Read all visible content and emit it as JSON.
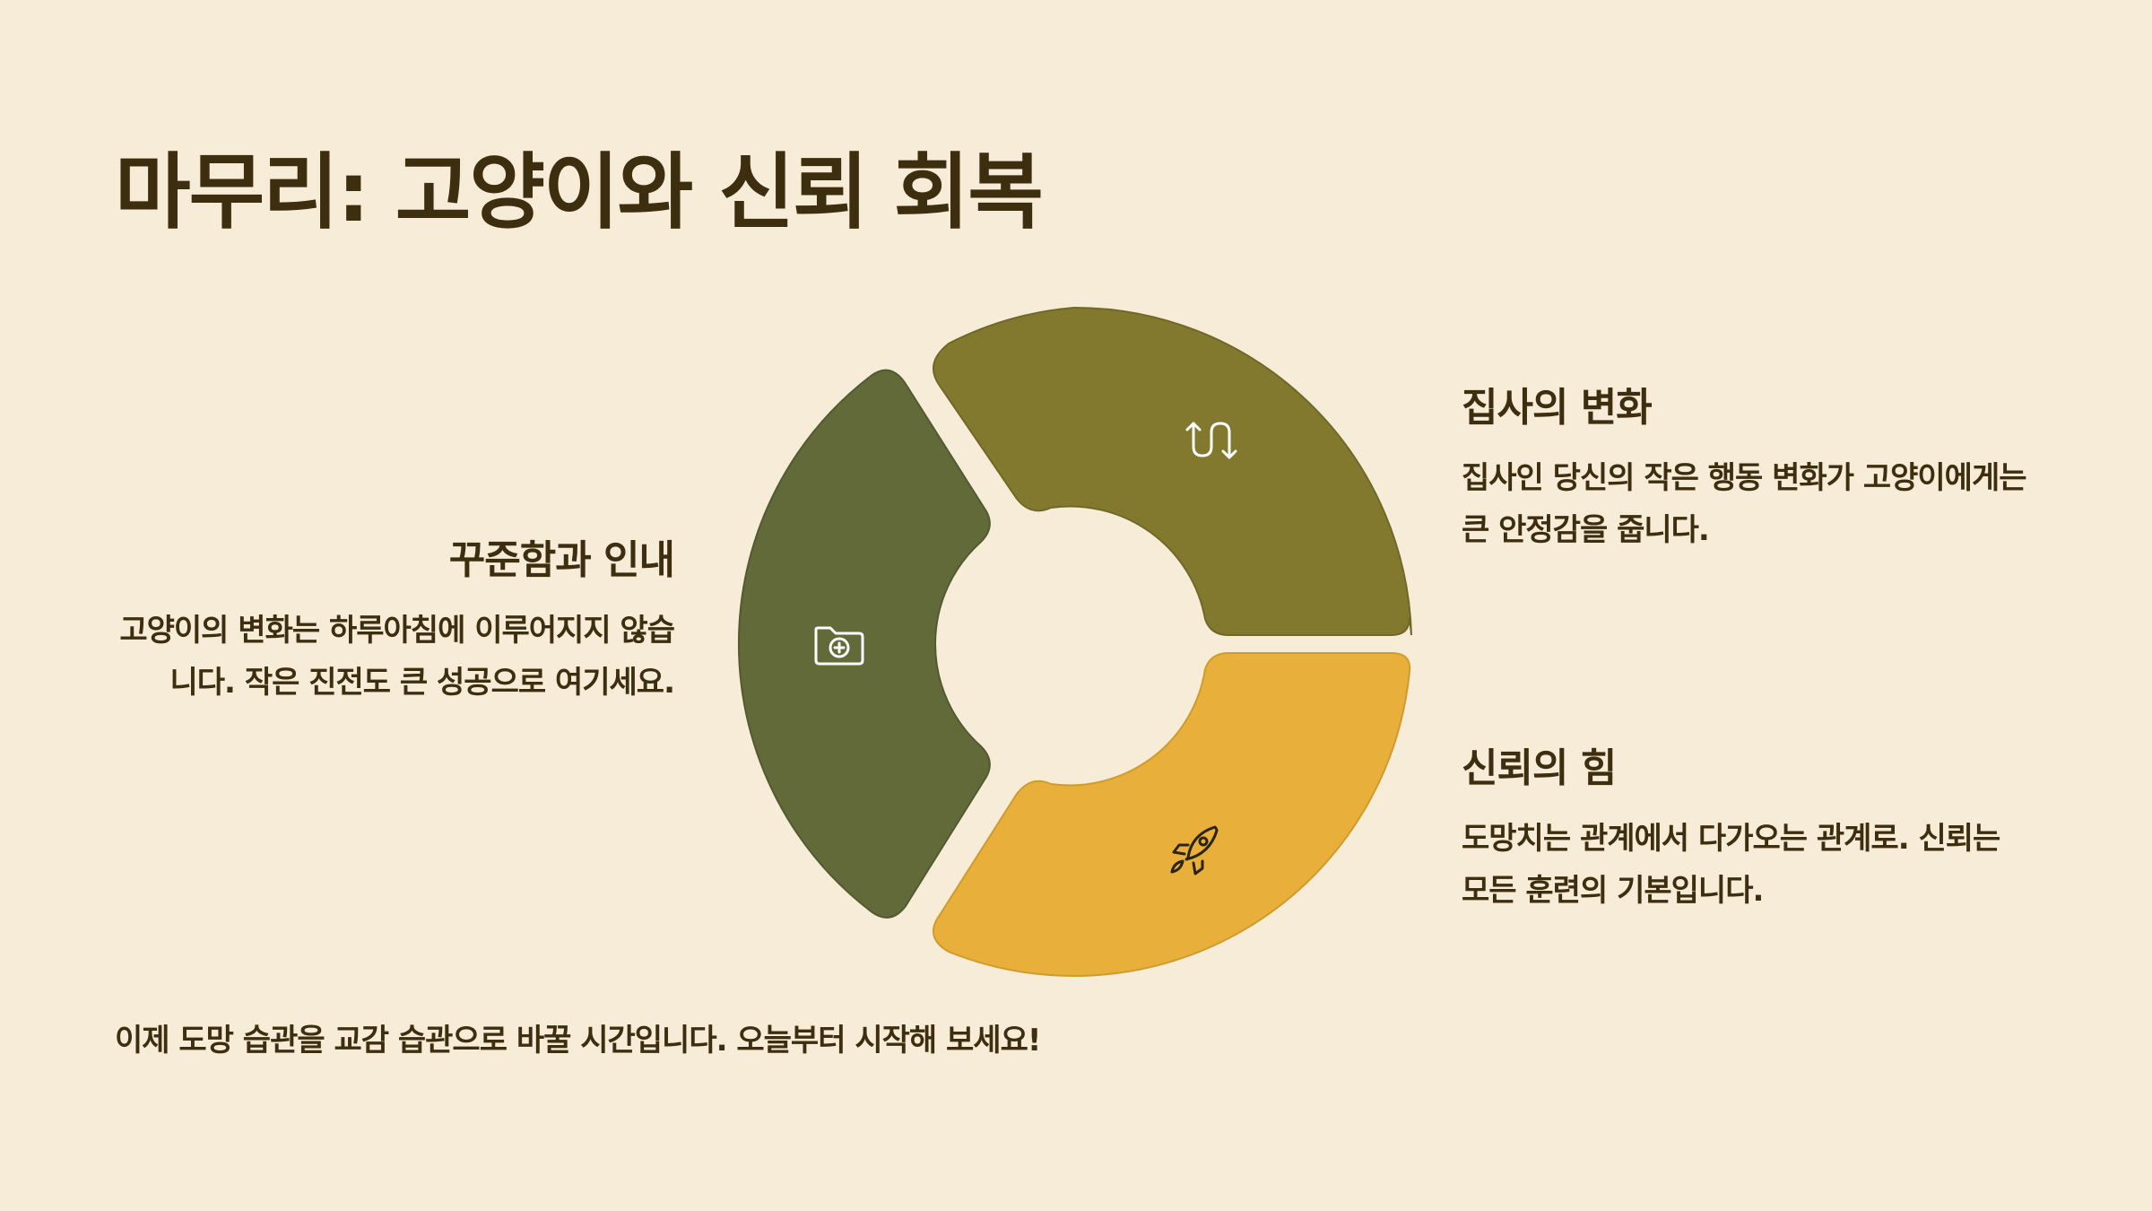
{
  "title": "마무리: 고양이와 신뢰 회복",
  "diagram": {
    "segments": [
      {
        "key": "top-right",
        "color": "#82792f",
        "icon": "exchange-arrows-icon",
        "heading": "집사의 변화",
        "text": "집사인 당신의 작은 행동 변화가 고양이에게는 큰 안정감을 줍니다."
      },
      {
        "key": "bottom-right",
        "color": "#e8b03b",
        "icon": "rocket-icon",
        "heading": "신뢰의 힘",
        "text": "도망치는 관계에서 다가오는 관계로. 신뢰는 모든 훈련의 기본입니다."
      },
      {
        "key": "left",
        "color": "#626a3a",
        "icon": "folder-plus-icon",
        "heading": "꾸준함과 인내",
        "text": "고양이의 변화는 하루아침에 이루어지지 않습니다. 작은 진전도 큰 성공으로 여기세요."
      }
    ]
  },
  "footer": "이제 도망 습관을 교감 습관으로 바꿀 시간입니다. 오늘부터 시작해 보세요!"
}
